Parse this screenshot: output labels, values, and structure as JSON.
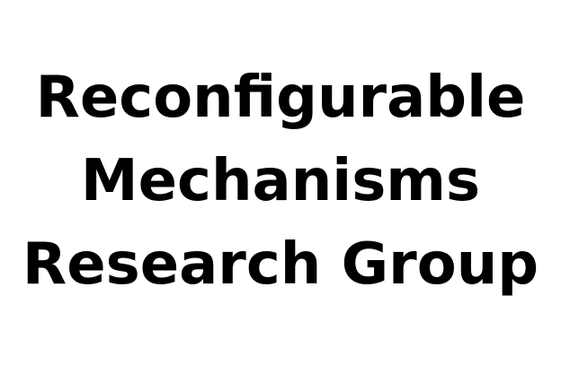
{
  "title": {
    "lines": [
      "Reconfigurable",
      "Mechanisms",
      "Research Group"
    ],
    "color": "#000000"
  },
  "background_color": "#ffffff"
}
